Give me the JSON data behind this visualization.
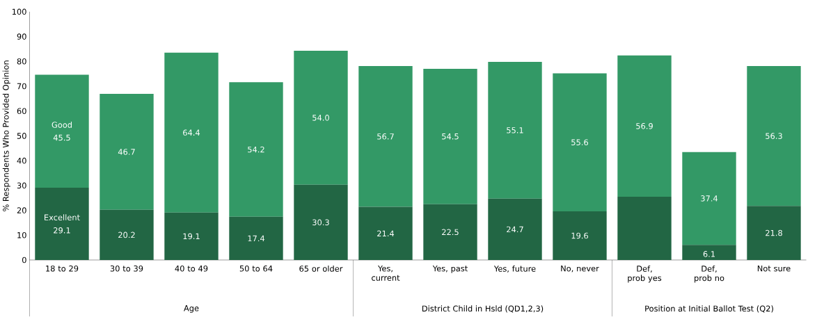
{
  "chart_data": {
    "type": "bar",
    "stacked": true,
    "ylabel": "% Respondents Who Provided Opinion",
    "categories": [
      "18 to 29",
      "30 to 39",
      "40 to 49",
      "50 to 64",
      "65 or older",
      "Yes, current",
      "Yes, past",
      "Yes, future",
      "No, never",
      "Def, prob yes",
      "Def, prob no",
      "Not sure"
    ],
    "series": [
      {
        "name": "Excellent",
        "color": "#226644",
        "values": [
          29.1,
          20.2,
          19.1,
          17.4,
          30.3,
          21.4,
          22.5,
          24.7,
          19.6,
          25.5,
          6.1,
          21.8
        ],
        "value_labels": [
          "29.1",
          "20.2",
          "19.1",
          "17.4",
          "30.3",
          "21.4",
          "22.5",
          "24.7",
          "19.6",
          null,
          "6.1",
          "21.8"
        ]
      },
      {
        "name": "Good",
        "color": "#339966",
        "values": [
          45.5,
          46.7,
          64.4,
          54.2,
          54.0,
          56.7,
          54.5,
          55.1,
          55.6,
          56.9,
          37.4,
          56.3
        ],
        "value_labels": [
          "45.5",
          "46.7",
          "64.4",
          "54.2",
          "54.0",
          "56.7",
          "54.5",
          "55.1",
          "55.6",
          "56.9",
          "37.4",
          "56.3"
        ]
      }
    ],
    "ylim": [
      0,
      100
    ],
    "yticks": [
      0,
      10,
      20,
      30,
      40,
      50,
      60,
      70,
      80,
      90,
      100
    ],
    "annotations": [
      "Age",
      "District Child in Hsld (QD1,2,3)",
      "Position at Initial Ballot Test (Q2)"
    ]
  }
}
